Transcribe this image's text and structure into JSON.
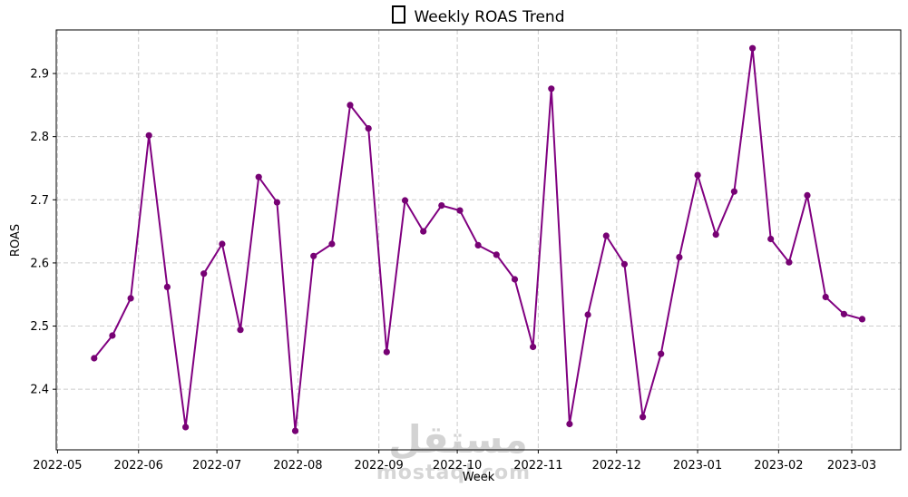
{
  "chart_data": {
    "type": "line",
    "title": "Weekly ROAS Trend",
    "title_icon": "missing-glyph-box",
    "xlabel": "Week",
    "ylabel": "ROAS",
    "x": [
      "2022-05-15",
      "2022-05-22",
      "2022-05-29",
      "2022-06-05",
      "2022-06-12",
      "2022-06-19",
      "2022-06-26",
      "2022-07-03",
      "2022-07-10",
      "2022-07-17",
      "2022-07-24",
      "2022-07-31",
      "2022-08-07",
      "2022-08-14",
      "2022-08-21",
      "2022-08-28",
      "2022-09-04",
      "2022-09-11",
      "2022-09-18",
      "2022-09-25",
      "2022-10-02",
      "2022-10-09",
      "2022-10-16",
      "2022-10-23",
      "2022-10-30",
      "2022-11-06",
      "2022-11-13",
      "2022-11-20",
      "2022-11-27",
      "2022-12-04",
      "2022-12-11",
      "2022-12-18",
      "2022-12-25",
      "2023-01-01",
      "2023-01-08",
      "2023-01-15",
      "2023-01-22",
      "2023-01-29",
      "2023-02-05",
      "2023-02-12",
      "2023-02-19",
      "2023-02-26",
      "2023-03-05"
    ],
    "series": [
      {
        "name": "ROAS",
        "values": [
          2.449,
          2.485,
          2.544,
          2.802,
          2.562,
          2.34,
          2.583,
          2.63,
          2.494,
          2.736,
          2.696,
          2.334,
          2.611,
          2.63,
          2.85,
          2.813,
          2.459,
          2.699,
          2.65,
          2.691,
          2.683,
          2.628,
          2.613,
          2.574,
          2.467,
          2.876,
          2.345,
          2.518,
          2.643,
          2.598,
          2.356,
          2.456,
          2.609,
          2.739,
          2.645,
          2.713,
          2.94,
          2.638,
          2.601,
          2.707,
          2.546,
          2.519,
          2.511
        ]
      }
    ],
    "x_tick_labels": [
      "2022-05",
      "2022-06",
      "2022-07",
      "2022-08",
      "2022-09",
      "2022-10",
      "2022-11",
      "2022-12",
      "2023-01",
      "2023-02",
      "2023-03"
    ],
    "y_ticks": [
      2.4,
      2.5,
      2.6,
      2.7,
      2.8,
      2.9
    ],
    "ylim": [
      2.304,
      2.969
    ],
    "xlim": [
      "2022-04-30",
      "2023-03-20"
    ],
    "grid": true,
    "grid_style": "dashed",
    "legend": false,
    "line_color": "#800080",
    "marker": "o",
    "marker_color": "#770274",
    "axis_color": "#000000",
    "grid_color": "#cccccc"
  },
  "watermark": {
    "arabic": "مستقل",
    "domain": "mostaql.com"
  }
}
